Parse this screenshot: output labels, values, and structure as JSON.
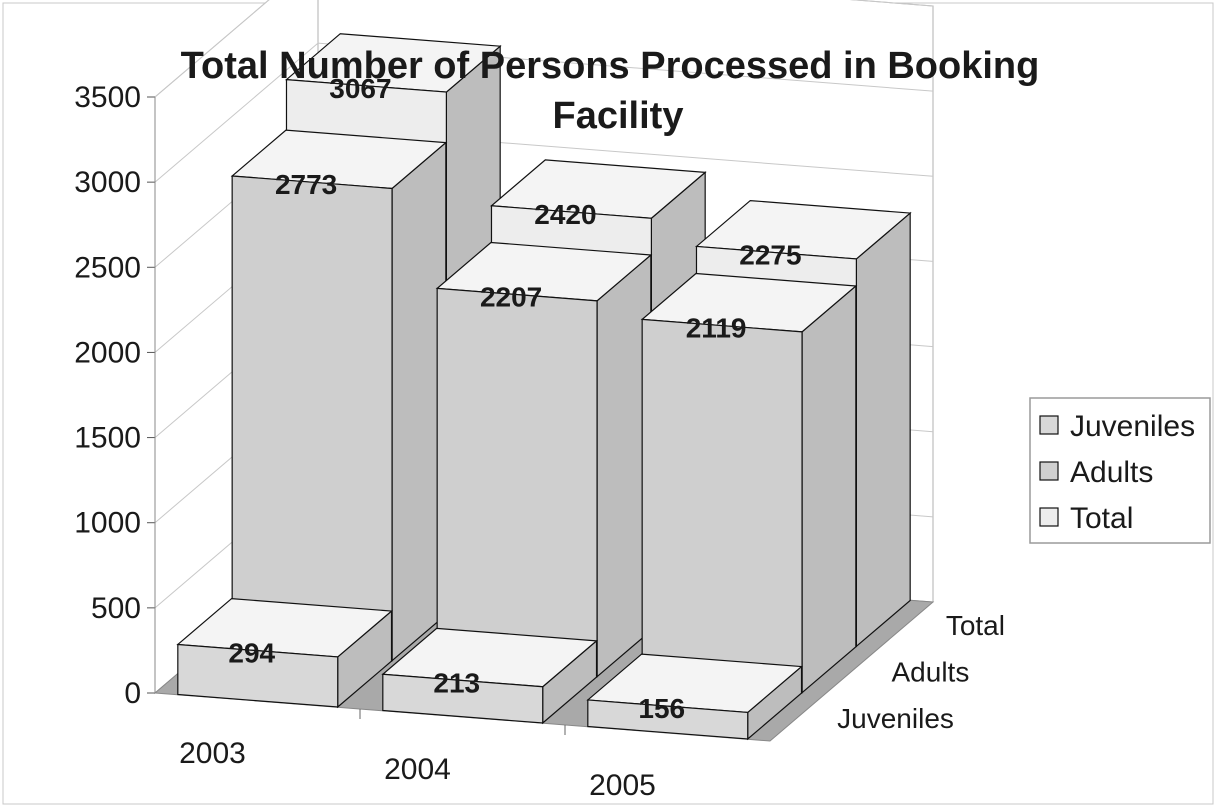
{
  "chart_data": {
    "type": "bar",
    "subtype": "3d-column",
    "title": "Total Number of Persons Processed in Booking Facility",
    "categories": [
      "2003",
      "2004",
      "2005"
    ],
    "series": [
      {
        "name": "Juveniles",
        "values": [
          294,
          213,
          156
        ]
      },
      {
        "name": "Adults",
        "values": [
          2773,
          2207,
          2119
        ]
      },
      {
        "name": "Total",
        "values": [
          3067,
          2420,
          2275
        ]
      }
    ],
    "ylim": [
      0,
      3500
    ],
    "yticks": [
      "0",
      "500",
      "1000",
      "1500",
      "2000",
      "2500",
      "3000",
      "3500"
    ],
    "depth_labels": [
      "Juveniles",
      "Adults",
      "Total"
    ],
    "grid": true,
    "legend": "right",
    "colors": {
      "juveniles": "#d8d8d8",
      "adults": "#cfcfcf",
      "total": "#ededed",
      "floor": "#a9a9a9",
      "walls": "#ffffff"
    }
  }
}
